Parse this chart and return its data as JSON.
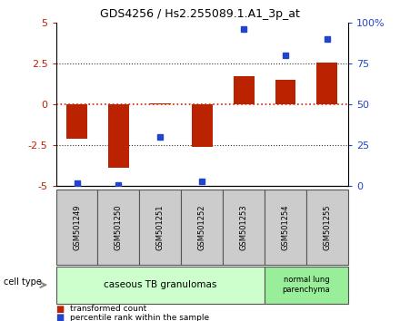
{
  "title": "GDS4256 / Hs2.255089.1.A1_3p_at",
  "samples": [
    "GSM501249",
    "GSM501250",
    "GSM501251",
    "GSM501252",
    "GSM501253",
    "GSM501254",
    "GSM501255"
  ],
  "transformed_count": [
    -2.1,
    -3.9,
    0.05,
    -2.6,
    1.7,
    1.5,
    2.55
  ],
  "percentile_rank": [
    2,
    1,
    30,
    3,
    96,
    80,
    90
  ],
  "ylim_left": [
    -5,
    5
  ],
  "ylim_right": [
    0,
    100
  ],
  "yticks_left": [
    -5,
    -2.5,
    0,
    2.5,
    5
  ],
  "yticks_right": [
    0,
    25,
    50,
    75,
    100
  ],
  "ytick_labels_right": [
    "0",
    "25",
    "50",
    "75",
    "100%"
  ],
  "bar_color": "#bb2200",
  "dot_color": "#2244cc",
  "hline_color": "#cc2200",
  "dotted_line_color": "#333333",
  "group1_label": "caseous TB granulomas",
  "group2_label": "normal lung\nparenchyma",
  "group1_color": "#ccffcc",
  "group2_color": "#99ee99",
  "cell_type_label": "cell type",
  "legend1_label": "transformed count",
  "legend2_label": "percentile rank within the sample",
  "bar_width": 0.5,
  "sample_box_color": "#cccccc",
  "n_group1": 5,
  "n_group2": 2
}
